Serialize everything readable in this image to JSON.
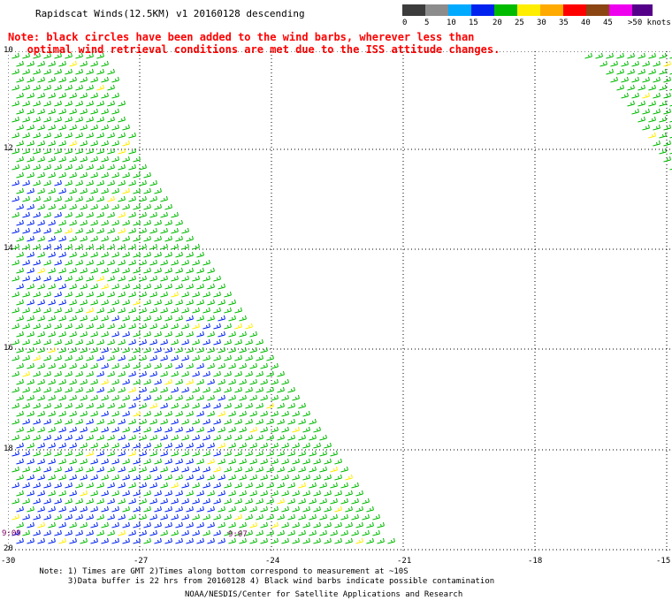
{
  "title": "Rapidscat Winds(12.5KM) v1 20160128 descending",
  "note": "Note: black circles have been added to the wind barbs, wherever less than\n   optimal wind retrieval conditions are met due to the ISS attitude changes.",
  "scale": {
    "labels": [
      "0",
      "5",
      "10",
      "15",
      "20",
      "25",
      "30",
      "35",
      "40",
      "45",
      ">50 knots"
    ],
    "colors": [
      "#3c3c3c",
      "#8c8c8c",
      "#00aaff",
      "#0022ee",
      "#00bb00",
      "#ffee00",
      "#ffaa00",
      "#ff0000",
      "#8b4513",
      "#ee00ee",
      "#550088"
    ]
  },
  "lat_labels": [
    "10",
    "12",
    "14",
    "16",
    "18",
    "20"
  ],
  "lon_labels": [
    "-30",
    "-27",
    "-24",
    "-21",
    "-18",
    "-15"
  ],
  "times": [
    "9:09",
    "9:07"
  ],
  "footer": " Note: 1) Times are GMT 2)Times along bottom correspond to measurement at ~10S\n       3)Data buffer is 22 hrs from 20160128 4) Black wind barbs indicate possible contamination",
  "credit": "NOAA/NESDIS/Center for Satellite Applications and Research",
  "barb_colors": {
    "green": "#00bb00",
    "blue": "#0022ee",
    "yellow": "#ffee00"
  }
}
